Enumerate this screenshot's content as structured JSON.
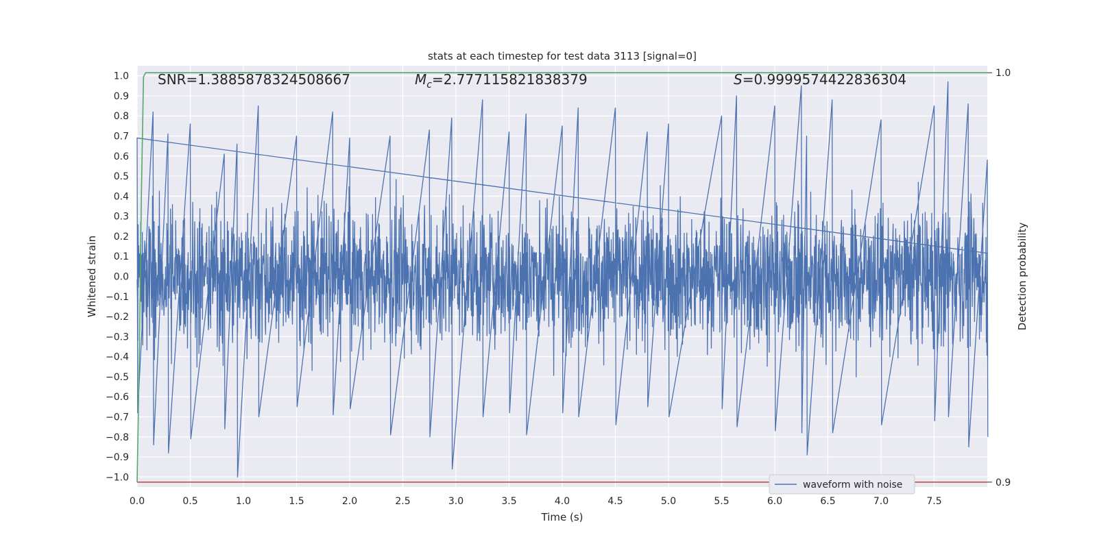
{
  "chart_data": {
    "type": "line",
    "title": "stats at each timestep for test data 3113 [signal=0]",
    "xlabel": "Time (s)",
    "ylabel": "Whitened strain",
    "y2label": "Detection probability",
    "xlim": [
      0.0,
      8.0
    ],
    "ylim": [
      -1.05,
      1.05
    ],
    "y2lim": [
      0.8988,
      1.0017
    ],
    "x_ticks": [
      "0.0",
      "0.5",
      "1.0",
      "1.5",
      "2.0",
      "2.5",
      "3.0",
      "3.5",
      "4.0",
      "4.5",
      "5.0",
      "5.5",
      "6.0",
      "6.5",
      "7.0",
      "7.5"
    ],
    "y_ticks": [
      "1.0",
      "0.9",
      "0.8",
      "0.7",
      "0.6",
      "0.5",
      "0.4",
      "0.3",
      "0.2",
      "0.1",
      "0.0",
      "−0.1",
      "−0.2",
      "−0.3",
      "−0.4",
      "−0.5",
      "−0.6",
      "−0.7",
      "−0.8",
      "−0.9",
      "−1.0"
    ],
    "y2_ticks": [
      "1.0",
      "0.9"
    ],
    "grid": true,
    "legend_position": "lower-right",
    "annotations": {
      "snr": "SNR=1.3885878324508667",
      "mc_symbol": "M",
      "mc_sub": "c",
      "mc_value": "=2.777115821838379",
      "s_symbol": "S",
      "s_value": "=0.9999574422836304"
    },
    "series": [
      {
        "name": "waveform with noise",
        "color": "#4c72b0",
        "description_note": "noisy whitened strain signal sampled densely from 0 to 8 s",
        "x_range": [
          0.0,
          8.0
        ],
        "envelope": [
          {
            "x": 0.0,
            "min": -0.68,
            "max": 0.69
          },
          {
            "x": 0.15,
            "min": -0.84,
            "max": 0.82
          },
          {
            "x": 0.29,
            "min": -0.88,
            "max": 0.71
          },
          {
            "x": 0.5,
            "min": -0.81,
            "max": 0.76
          },
          {
            "x": 0.82,
            "min": -0.76,
            "max": 0.61
          },
          {
            "x": 0.94,
            "min": -1.0,
            "max": 0.66
          },
          {
            "x": 1.14,
            "min": -0.7,
            "max": 0.85
          },
          {
            "x": 1.5,
            "min": -0.65,
            "max": 0.7
          },
          {
            "x": 1.84,
            "min": -0.69,
            "max": 0.82
          },
          {
            "x": 2.0,
            "min": -0.66,
            "max": 0.69
          },
          {
            "x": 2.38,
            "min": -0.79,
            "max": 0.7
          },
          {
            "x": 2.75,
            "min": -0.8,
            "max": 0.73
          },
          {
            "x": 2.96,
            "min": -0.96,
            "max": 0.79
          },
          {
            "x": 3.25,
            "min": -0.7,
            "max": 0.88
          },
          {
            "x": 3.5,
            "min": -0.68,
            "max": 0.72
          },
          {
            "x": 3.66,
            "min": -0.79,
            "max": 0.81
          },
          {
            "x": 4.0,
            "min": -0.68,
            "max": 0.75
          },
          {
            "x": 4.15,
            "min": -0.7,
            "max": 0.84
          },
          {
            "x": 4.5,
            "min": -0.74,
            "max": 0.84
          },
          {
            "x": 4.8,
            "min": -0.65,
            "max": 0.72
          },
          {
            "x": 5.0,
            "min": -0.7,
            "max": 0.76
          },
          {
            "x": 5.5,
            "min": -0.66,
            "max": 0.8
          },
          {
            "x": 5.64,
            "min": -0.75,
            "max": 0.9
          },
          {
            "x": 6.0,
            "min": -0.77,
            "max": 0.85
          },
          {
            "x": 6.25,
            "min": -0.78,
            "max": 0.95
          },
          {
            "x": 6.3,
            "min": -0.89,
            "max": 0.7
          },
          {
            "x": 6.54,
            "min": -0.78,
            "max": 0.88
          },
          {
            "x": 7.0,
            "min": -0.74,
            "max": 0.78
          },
          {
            "x": 7.5,
            "min": -0.72,
            "max": 0.85
          },
          {
            "x": 7.63,
            "min": -0.7,
            "max": 0.97
          },
          {
            "x": 7.82,
            "min": -0.85,
            "max": 0.86
          },
          {
            "x": 8.0,
            "min": -0.8,
            "max": 0.58
          }
        ]
      },
      {
        "color": "#55a868",
        "axis": "right",
        "x": [
          0.0,
          0.02,
          0.04,
          0.06,
          0.08,
          0.2,
          8.0
        ],
        "values": [
          0.9,
          0.93,
          0.97,
          0.999,
          1.0,
          1.0,
          1.0
        ]
      },
      {
        "color": "#c44e52",
        "axis": "right",
        "x": [
          0.0,
          8.0
        ],
        "values": [
          0.9,
          0.9
        ]
      }
    ]
  }
}
